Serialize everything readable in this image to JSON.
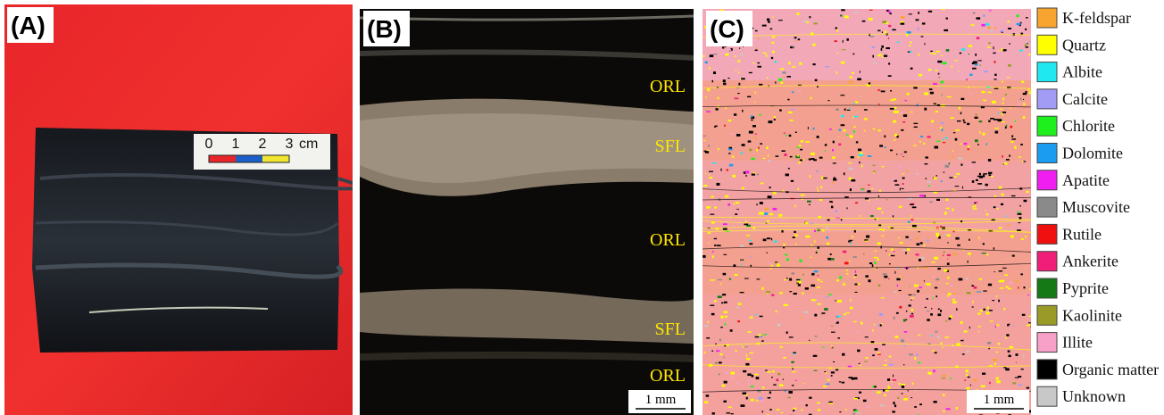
{
  "panels": [
    {
      "label": "(A)",
      "scale_ticks": [
        "0",
        "1",
        "2",
        "3"
      ],
      "scale_unit": "cm"
    },
    {
      "label": "(B)",
      "layers": [
        "ORL",
        "SFL",
        "ORL",
        "SFL",
        "ORL"
      ],
      "scale_bar": "1 mm"
    },
    {
      "label": "(C)",
      "scale_bar": "1 mm"
    }
  ],
  "legend": [
    {
      "name": "K-feldspar",
      "color": "#f7a530"
    },
    {
      "name": "Quartz",
      "color": "#ffff00"
    },
    {
      "name": "Albite",
      "color": "#1fe8f0"
    },
    {
      "name": "Calcite",
      "color": "#a29cf5"
    },
    {
      "name": "Chlorite",
      "color": "#1ef01e"
    },
    {
      "name": "Dolomite",
      "color": "#1b9cf0"
    },
    {
      "name": "Apatite",
      "color": "#f01ef0"
    },
    {
      "name": "Muscovite",
      "color": "#8a8a8a"
    },
    {
      "name": "Rutile",
      "color": "#f01010"
    },
    {
      "name": "Ankerite",
      "color": "#f01e78"
    },
    {
      "name": "Pyprite",
      "color": "#157a15"
    },
    {
      "name": "Kaolinite",
      "color": "#9a9a28"
    },
    {
      "name": "Illite",
      "color": "#f7a0c8"
    },
    {
      "name": "Organic matter",
      "color": "#000000"
    },
    {
      "name": "Unknown",
      "color": "#c8c8c8"
    }
  ]
}
